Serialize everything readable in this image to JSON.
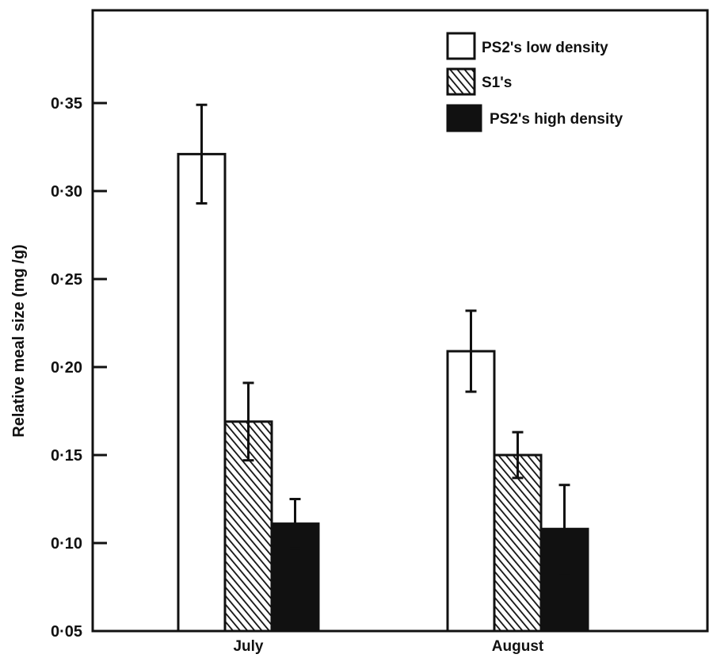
{
  "chart_data": {
    "type": "bar",
    "title": "",
    "xlabel": "",
    "ylabel": "Relative meal size (mg /g)",
    "ylim": [
      0.05,
      0.39
    ],
    "yticks": [
      {
        "value": 0.05,
        "label": "0·05"
      },
      {
        "value": 0.1,
        "label": "0·10"
      },
      {
        "value": 0.15,
        "label": "0·15"
      },
      {
        "value": 0.2,
        "label": "0·20"
      },
      {
        "value": 0.25,
        "label": "0·25"
      },
      {
        "value": 0.3,
        "label": "0·30"
      },
      {
        "value": 0.35,
        "label": "0·35"
      }
    ],
    "categories": [
      "July",
      "August"
    ],
    "series": [
      {
        "name": "PS2's low density",
        "fill": "white",
        "values": [
          0.321,
          0.209
        ],
        "errors": [
          0.028,
          0.023
        ]
      },
      {
        "name": "S1's",
        "fill": "hatched",
        "values": [
          0.169,
          0.15
        ],
        "errors": [
          0.022,
          0.013
        ]
      },
      {
        "name": "PS2's high density",
        "fill": "black",
        "values": [
          0.111,
          0.108
        ],
        "errors": [
          0.014,
          0.025
        ]
      }
    ],
    "legend_position": "top-right",
    "grid": false
  },
  "colors": {
    "ink": "#111111",
    "background": "#ffffff"
  }
}
